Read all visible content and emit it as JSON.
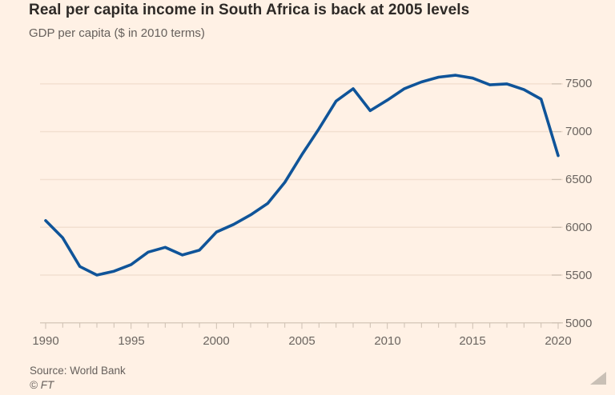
{
  "header": {
    "title": "Real per capita income in South Africa is back at 2005 levels",
    "subtitle": "GDP per capita ($ in 2010 terms)"
  },
  "footer": {
    "source": "Source: World Bank",
    "copyright": "© FT"
  },
  "colors": {
    "background": "#FFF1E5",
    "line": "#0F5499",
    "title_text": "#2E2A27",
    "muted_text": "#66605C",
    "gridline": "#F2E0D0",
    "axis": "#CDC0B2"
  },
  "chart_data": {
    "type": "line",
    "title": "Real per capita income in South Africa is back at 2005 levels",
    "subtitle": "GDP per capita ($ in 2010 terms)",
    "xlabel": "",
    "ylabel": "GDP per capita ($ in 2010 terms)",
    "x": [
      1990,
      1991,
      1992,
      1993,
      1994,
      1995,
      1996,
      1997,
      1998,
      1999,
      2000,
      2001,
      2002,
      2003,
      2004,
      2005,
      2006,
      2007,
      2008,
      2009,
      2010,
      2011,
      2012,
      2013,
      2014,
      2015,
      2016,
      2017,
      2018,
      2019,
      2020
    ],
    "series": [
      {
        "name": "GDP per capita, South Africa ($, 2010 terms)",
        "values": [
          6070,
          5890,
          5590,
          5500,
          5540,
          5610,
          5740,
          5790,
          5710,
          5760,
          5950,
          6030,
          6130,
          6250,
          6470,
          6760,
          7030,
          7320,
          7450,
          7220,
          7330,
          7450,
          7520,
          7570,
          7590,
          7560,
          7490,
          7500,
          7440,
          7340,
          6750
        ]
      }
    ],
    "xlim": [
      1990,
      2020
    ],
    "ylim": [
      5000,
      7500
    ],
    "xticks": [
      1990,
      1995,
      2000,
      2005,
      2010,
      2015,
      2020
    ],
    "yticks": [
      5000,
      5500,
      6000,
      6500,
      7000,
      7500
    ],
    "minor_xticks": "every year",
    "grid": "horizontal only, very faint",
    "legend": "none",
    "ytick_side": "right",
    "source": "Source: World Bank",
    "credit": "© FT"
  }
}
